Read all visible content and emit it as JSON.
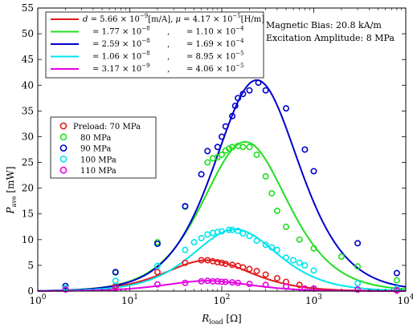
{
  "chart_data": {
    "type": "line",
    "xscale": "log",
    "xlim": [
      1,
      10000
    ],
    "ylim": [
      0,
      55
    ],
    "xlabel_main": "R",
    "xlabel_sub": "load",
    "xlabel_unit": "[Ω]",
    "ylabel_main": "P",
    "ylabel_sub": "ave",
    "ylabel_unit": "[mW]",
    "x_ticks": [
      {
        "base": "10",
        "exp": "0",
        "value": 1
      },
      {
        "base": "10",
        "exp": "1",
        "value": 10
      },
      {
        "base": "10",
        "exp": "2",
        "value": 100
      },
      {
        "base": "10",
        "exp": "3",
        "value": 1000
      },
      {
        "base": "10",
        "exp": "4",
        "value": 10000
      }
    ],
    "y_ticks": [
      "0",
      "5",
      "10",
      "15",
      "20",
      "25",
      "30",
      "35",
      "40",
      "45",
      "50",
      "55"
    ],
    "annotations": [
      "Magnetic Bias: 20.8 kA/m",
      "Excitation Amplitude: 8 MPa"
    ],
    "fit_legend": [
      {
        "d_prefix": "d = ",
        "d_val": "5.66 × 10",
        "d_exp": "−9",
        "d_unit": "[m/A], ",
        "mu_prefix": "μ = ",
        "mu_val": "4.17 × 10",
        "mu_exp": "−5",
        "mu_unit": "[H/m]"
      },
      {
        "d_prefix": "= ",
        "d_val": "1.77 × 10",
        "d_exp": "−8",
        "sep": ",",
        "mu_prefix": "= ",
        "mu_val": "1.10 × 10",
        "mu_exp": "−4"
      },
      {
        "d_prefix": "= ",
        "d_val": "2.59 × 10",
        "d_exp": "−8",
        "sep": ",",
        "mu_prefix": "= ",
        "mu_val": "1.69 × 10",
        "mu_exp": "−4"
      },
      {
        "d_prefix": "= ",
        "d_val": "1.06 × 10",
        "d_exp": "−8",
        "sep": ",",
        "mu_prefix": "= ",
        "mu_val": "8.95 × 10",
        "mu_exp": "−5"
      },
      {
        "d_prefix": "= ",
        "d_val": "3.17 × 10",
        "d_exp": "−9",
        "sep": ",",
        "mu_prefix": "= ",
        "mu_val": "4.06 × 10",
        "mu_exp": "−5"
      }
    ],
    "data_legend": [
      "Preload: 70 MPa",
      "80 MPa",
      "90 MPa",
      "100 MPa",
      "110 MPa"
    ],
    "series": [
      {
        "color": "#e31a1c",
        "peak_x": 70,
        "peak_y": 6.0,
        "points": [
          [
            2,
            0.4
          ],
          [
            7,
            1.0
          ],
          [
            20,
            3.7
          ],
          [
            40,
            5.5
          ],
          [
            60,
            6.0
          ],
          [
            70,
            6.0
          ],
          [
            80,
            5.8
          ],
          [
            90,
            5.6
          ],
          [
            100,
            5.5
          ],
          [
            110,
            5.3
          ],
          [
            130,
            5.1
          ],
          [
            150,
            4.9
          ],
          [
            170,
            4.6
          ],
          [
            200,
            4.3
          ],
          [
            240,
            3.9
          ],
          [
            300,
            3.2
          ],
          [
            400,
            2.5
          ],
          [
            500,
            1.8
          ],
          [
            700,
            1.2
          ],
          [
            1000,
            0.5
          ],
          [
            3000,
            0.3
          ],
          [
            8000,
            0.2
          ]
        ]
      },
      {
        "color": "#1ee01e",
        "peak_x": 180,
        "peak_y": 29.0,
        "points": [
          [
            2,
            0.5
          ],
          [
            7,
            3.6
          ],
          [
            20,
            9.5
          ],
          [
            40,
            16.4
          ],
          [
            70,
            25.0
          ],
          [
            80,
            25.8
          ],
          [
            90,
            26.0
          ],
          [
            100,
            26.5
          ],
          [
            110,
            27.3
          ],
          [
            120,
            27.7
          ],
          [
            130,
            28.0
          ],
          [
            150,
            28.2
          ],
          [
            170,
            28.0
          ],
          [
            200,
            28.0
          ],
          [
            240,
            26.5
          ],
          [
            300,
            22.3
          ],
          [
            350,
            19.0
          ],
          [
            400,
            15.6
          ],
          [
            500,
            12.5
          ],
          [
            700,
            10.0
          ],
          [
            1000,
            8.3
          ],
          [
            2000,
            6.7
          ],
          [
            3000,
            4.8
          ],
          [
            8000,
            2.1
          ]
        ]
      },
      {
        "color": "#0000cd",
        "peak_x": 240,
        "peak_y": 41.0,
        "points": [
          [
            2,
            1.0
          ],
          [
            7,
            3.7
          ],
          [
            20,
            9.2
          ],
          [
            40,
            16.5
          ],
          [
            60,
            22.7
          ],
          [
            70,
            27.2
          ],
          [
            90,
            28.0
          ],
          [
            100,
            30.0
          ],
          [
            110,
            32.0
          ],
          [
            130,
            34.0
          ],
          [
            140,
            36.0
          ],
          [
            150,
            37.5
          ],
          [
            170,
            38.3
          ],
          [
            200,
            39.0
          ],
          [
            250,
            40.5
          ],
          [
            300,
            39.0
          ],
          [
            500,
            35.5
          ],
          [
            800,
            27.5
          ],
          [
            1000,
            23.3
          ],
          [
            3000,
            9.3
          ],
          [
            8000,
            3.5
          ]
        ]
      },
      {
        "color": "#00e5ee",
        "peak_x": 140,
        "peak_y": 12.0,
        "points": [
          [
            2,
            0.6
          ],
          [
            7,
            2.0
          ],
          [
            20,
            4.9
          ],
          [
            40,
            8.0
          ],
          [
            50,
            9.5
          ],
          [
            60,
            10.3
          ],
          [
            70,
            11.0
          ],
          [
            80,
            11.3
          ],
          [
            90,
            11.5
          ],
          [
            100,
            11.6
          ],
          [
            120,
            11.9
          ],
          [
            130,
            11.9
          ],
          [
            150,
            11.7
          ],
          [
            170,
            11.2
          ],
          [
            200,
            10.7
          ],
          [
            240,
            9.8
          ],
          [
            300,
            9.0
          ],
          [
            350,
            8.5
          ],
          [
            400,
            8.0
          ],
          [
            500,
            6.5
          ],
          [
            600,
            6.0
          ],
          [
            700,
            5.5
          ],
          [
            800,
            5.0
          ],
          [
            1000,
            4.0
          ],
          [
            3000,
            1.5
          ],
          [
            8000,
            0.5
          ]
        ]
      },
      {
        "color": "#e600e6",
        "peak_x": 70,
        "peak_y": 2.0,
        "points": [
          [
            2,
            0.3
          ],
          [
            7,
            0.5
          ],
          [
            20,
            1.3
          ],
          [
            40,
            1.6
          ],
          [
            60,
            1.9
          ],
          [
            70,
            2.0
          ],
          [
            80,
            1.9
          ],
          [
            90,
            1.9
          ],
          [
            100,
            1.8
          ],
          [
            110,
            1.8
          ],
          [
            130,
            1.7
          ],
          [
            150,
            1.6
          ],
          [
            200,
            1.4
          ],
          [
            300,
            1.2
          ],
          [
            500,
            0.9
          ],
          [
            800,
            0.5
          ],
          [
            1000,
            0.5
          ],
          [
            3000,
            0.3
          ],
          [
            8000,
            0.1
          ]
        ]
      }
    ]
  }
}
